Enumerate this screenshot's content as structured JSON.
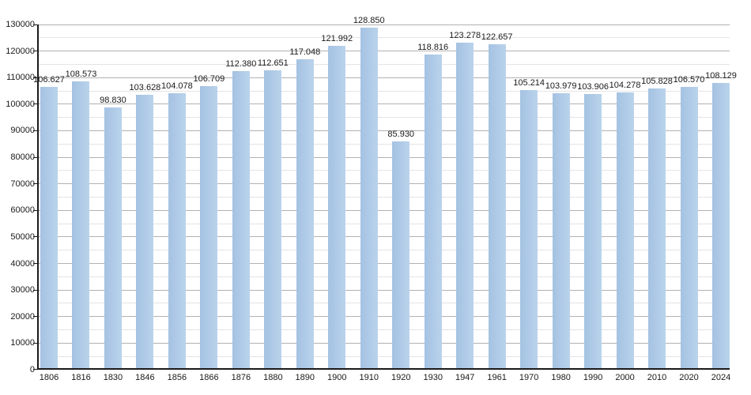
{
  "chart_data": {
    "type": "bar",
    "title": "",
    "xlabel": "",
    "ylabel": "",
    "categories": [
      "1806",
      "1816",
      "1830",
      "1846",
      "1856",
      "1866",
      "1876",
      "1880",
      "1890",
      "1900",
      "1910",
      "1920",
      "1930",
      "1947",
      "1961",
      "1970",
      "1980",
      "1990",
      "2000",
      "2010",
      "2020",
      "2024"
    ],
    "values": [
      106627,
      108573,
      98830,
      103628,
      104078,
      106709,
      112380,
      112651,
      117048,
      121992,
      128850,
      85930,
      118816,
      123278,
      122657,
      105214,
      103979,
      103906,
      104278,
      105828,
      106570,
      108129
    ],
    "value_labels": [
      "106.627",
      "108.573",
      "98.830",
      "103.628",
      "104.078",
      "106.709",
      "112.380",
      "112.651",
      "117.048",
      "121.992",
      "128.850",
      "85.930",
      "118.816",
      "123.278",
      "122.657",
      "105.214",
      "103.979",
      "103.906",
      "104.278",
      "105.828",
      "106.570",
      "108.129"
    ],
    "ylim": [
      0,
      130000
    ],
    "y_major_step": 10000,
    "y_minor_step": 5000,
    "y_tick_labels": [
      "0",
      "10000",
      "20000",
      "30000",
      "40000",
      "50000",
      "60000",
      "70000",
      "80000",
      "90000",
      "100000",
      "110000",
      "120000",
      "130000"
    ],
    "grid": "major-and-minor",
    "legend": "none"
  },
  "style": {
    "background": "#ffffff",
    "bar_color": "#aecae7",
    "bar_gradient_left": "#a5c2e2",
    "bar_gradient_right": "#bad3ec",
    "major_gridline_color": "#b2b2b2",
    "minor_gridline_color": "#e4e4e4",
    "axis_color": "#1a1a1a",
    "label_color": "#1a1a1a"
  }
}
